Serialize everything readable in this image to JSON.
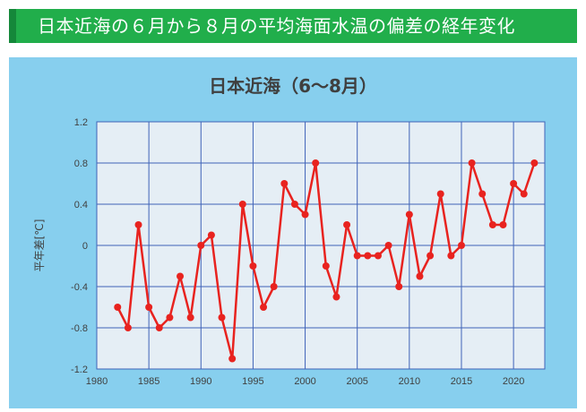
{
  "banner": {
    "title": "日本近海の６月から８月の平均海面水温の偏差の経年変化"
  },
  "colors": {
    "banner": "#21ae4b",
    "panel": "#87cfee",
    "plot_bg": "#e5eef5",
    "grid": "#3f63b8",
    "series": "#e8231f"
  },
  "chart_data": {
    "type": "line",
    "title": "日本近海（6〜8月）",
    "xlabel": "",
    "ylabel": "平年差[℃]",
    "xlim": [
      1980,
      2023
    ],
    "ylim": [
      -1.2,
      1.2
    ],
    "xticks": [
      1980,
      1985,
      1990,
      1995,
      2000,
      2005,
      2010,
      2015,
      2020
    ],
    "yticks": [
      -1.2,
      -0.8,
      -0.4,
      0,
      0.4,
      0.8,
      1.2
    ],
    "ytick_labels": [
      "-1.2",
      "-0.8",
      "-0.4",
      "0",
      "0.4",
      "0.8",
      "1.2"
    ],
    "grid": true,
    "legend": "none",
    "series": [
      {
        "x": [
          1982,
          1983,
          1984,
          1985,
          1986,
          1987,
          1988,
          1989,
          1990,
          1991,
          1992,
          1993,
          1994,
          1995,
          1996,
          1997,
          1998,
          1999,
          2000,
          2001,
          2002,
          2003,
          2004,
          2005,
          2006,
          2007,
          2008,
          2009,
          2010,
          2011,
          2012,
          2013,
          2014,
          2015,
          2016,
          2017,
          2018,
          2019,
          2020,
          2021,
          2022
        ],
        "values": [
          -0.6,
          -0.8,
          0.2,
          -0.6,
          -0.8,
          -0.7,
          -0.3,
          -0.7,
          0.0,
          0.1,
          -0.7,
          -1.1,
          0.4,
          -0.2,
          -0.6,
          -0.4,
          0.6,
          0.4,
          0.3,
          0.8,
          -0.2,
          -0.5,
          0.2,
          -0.1,
          -0.1,
          -0.1,
          0.0,
          -0.4,
          0.3,
          -0.3,
          -0.1,
          0.5,
          -0.1,
          0.0,
          0.8,
          0.5,
          0.2,
          0.2,
          0.6,
          0.5,
          0.8
        ],
        "color": "#e8231f"
      }
    ]
  }
}
